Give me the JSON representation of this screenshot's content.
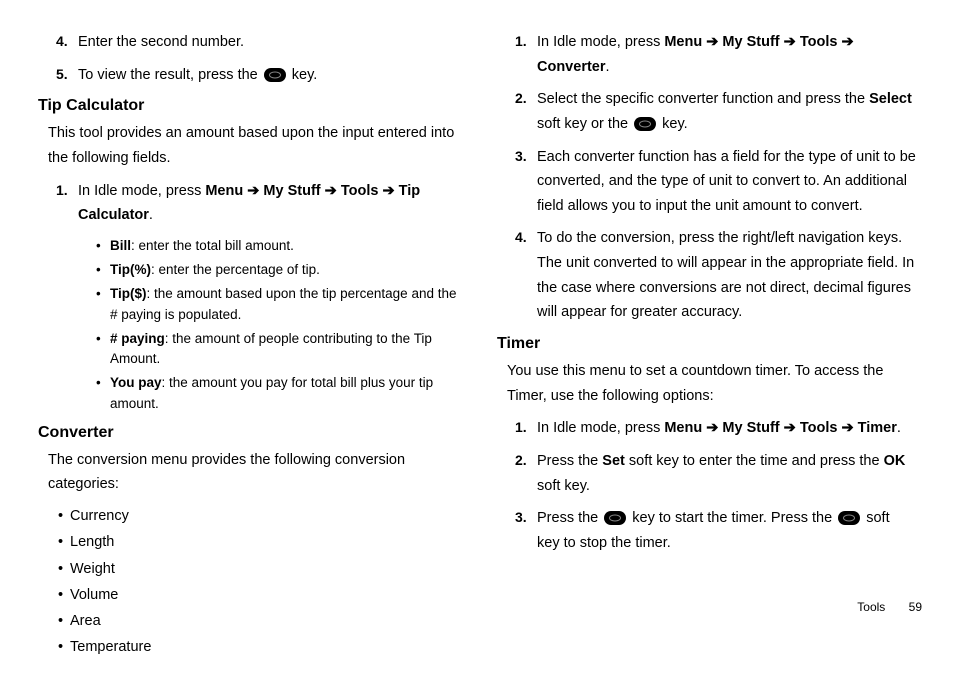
{
  "left": {
    "topSteps": [
      {
        "n": "4.",
        "text": "Enter the second number."
      },
      {
        "n": "5.",
        "pre": "To view the result, press the ",
        "post": " key.",
        "hasIcon": true
      }
    ],
    "tipCalc": {
      "heading": "Tip Calculator",
      "intro": "This tool provides an amount based upon the input entered into the following fields.",
      "step1": {
        "n": "1.",
        "pre": "In Idle mode, press ",
        "pathParts": [
          "Menu",
          "My Stuff",
          "Tools",
          "Tip Calculator"
        ],
        "post": "."
      },
      "bullets": [
        {
          "label": "Bill",
          "desc": ": enter the total bill amount."
        },
        {
          "label": "Tip(%)",
          "desc": ": enter the percentage of tip."
        },
        {
          "label": "Tip($)",
          "desc": ": the amount based upon the tip percentage and the # paying is populated."
        },
        {
          "label": "# paying",
          "desc": ": the amount of people contributing to the Tip Amount."
        },
        {
          "label": "You pay",
          "desc": ": the amount you pay for total bill plus your tip amount."
        }
      ]
    },
    "converter": {
      "heading": "Converter",
      "intro": "The conversion menu provides the following conversion categories:",
      "items": [
        "Currency",
        "Length",
        "Weight",
        "Volume",
        "Area",
        "Temperature"
      ]
    }
  },
  "right": {
    "steps": [
      {
        "n": "1.",
        "pre": "In Idle mode, press ",
        "pathParts": [
          "Menu",
          "My Stuff",
          "Tools",
          "Converter"
        ],
        "post": "."
      },
      {
        "n": "2.",
        "parts": [
          {
            "t": "Select the specific converter function and press the "
          },
          {
            "t": "Select",
            "bold": true
          },
          {
            "t": " soft key or the "
          },
          {
            "icon": true
          },
          {
            "t": " key."
          }
        ]
      },
      {
        "n": "3.",
        "parts": [
          {
            "t": "Each converter function has a field for the type of unit to be converted, and the type of unit to convert to. An additional field allows you to input the unit amount to convert."
          }
        ]
      },
      {
        "n": "4.",
        "parts": [
          {
            "t": "To do the conversion, press the right/left navigation keys. The unit converted to will appear in the appropriate field. In the case where conversions are not direct, decimal figures will appear for greater accuracy."
          }
        ]
      }
    ],
    "timer": {
      "heading": "Timer",
      "intro": "You use this menu to set a countdown timer. To access the Timer, use the following options:",
      "steps": [
        {
          "n": "1.",
          "pre": "In Idle mode, press ",
          "pathParts": [
            "Menu",
            "My Stuff",
            "Tools",
            "Timer"
          ],
          "post": "."
        },
        {
          "n": "2.",
          "parts": [
            {
              "t": "Press the "
            },
            {
              "t": "Set",
              "bold": true
            },
            {
              "t": " soft key to enter the time and press the "
            },
            {
              "t": "OK",
              "bold": true
            },
            {
              "t": " soft key."
            }
          ]
        },
        {
          "n": "3.",
          "parts": [
            {
              "t": "Press the "
            },
            {
              "icon": true
            },
            {
              "t": " key to start the timer. Press the "
            },
            {
              "icon": true
            },
            {
              "t": " soft key to stop the timer."
            }
          ]
        }
      ]
    }
  },
  "footer": {
    "section": "Tools",
    "page": "59"
  },
  "arrow": " ➔ "
}
